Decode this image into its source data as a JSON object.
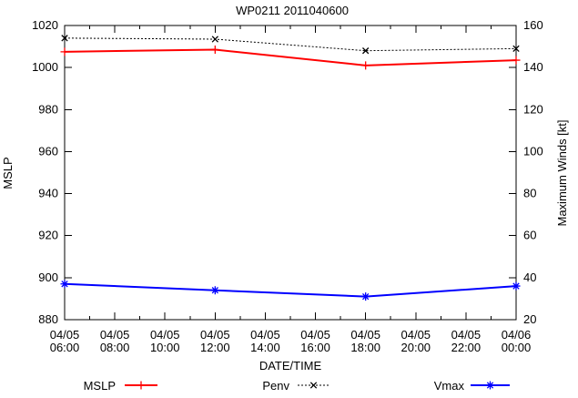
{
  "chart_data": {
    "type": "line",
    "title": "WP0211 2011040600",
    "xlabel": "DATE/TIME",
    "ylabel_left": "MSLP",
    "ylabel_right": "Maximum Winds [kt]",
    "x_categories": [
      "04/05 06:00",
      "04/05 08:00",
      "04/05 10:00",
      "04/05 12:00",
      "04/05 14:00",
      "04/05 16:00",
      "04/05 18:00",
      "04/05 20:00",
      "04/05 22:00",
      "04/06 00:00"
    ],
    "x_tick_labels_line1": [
      "04/05",
      "04/05",
      "04/05",
      "04/05",
      "04/05",
      "04/05",
      "04/05",
      "04/05",
      "04/05",
      "04/06"
    ],
    "x_tick_labels_line2": [
      "06:00",
      "08:00",
      "10:00",
      "12:00",
      "14:00",
      "16:00",
      "18:00",
      "20:00",
      "22:00",
      "00:00"
    ],
    "ylim_left": [
      880,
      1020
    ],
    "ylim_right": [
      20,
      160
    ],
    "y_ticks_left": [
      "880",
      "900",
      "920",
      "940",
      "960",
      "980",
      "1000",
      "1020"
    ],
    "y_ticks_right": [
      "20",
      "40",
      "60",
      "80",
      "100",
      "120",
      "140",
      "160"
    ],
    "grid": false,
    "legend_position": "bottom",
    "series": [
      {
        "name": "MSLP",
        "axis": "left",
        "color": "#ff0000",
        "line": "solid",
        "marker": "plus",
        "x": [
          "04/05 06:00",
          "04/05 12:00",
          "04/05 18:00",
          "04/06 00:00"
        ],
        "values": [
          1007.5,
          1008.5,
          1001,
          1003.5
        ]
      },
      {
        "name": "Penv",
        "axis": "left",
        "color": "#000000",
        "line": "dotted",
        "marker": "x",
        "x": [
          "04/05 06:00",
          "04/05 12:00",
          "04/05 18:00",
          "04/06 00:00"
        ],
        "values": [
          1014,
          1013.5,
          1008,
          1009
        ]
      },
      {
        "name": "Vmax",
        "axis": "right",
        "color": "#0000ff",
        "line": "solid",
        "marker": "asterisk",
        "x": [
          "04/05 06:00",
          "04/05 12:00",
          "04/05 18:00",
          "04/06 00:00"
        ],
        "values": [
          37,
          34,
          31,
          36
        ]
      }
    ]
  }
}
